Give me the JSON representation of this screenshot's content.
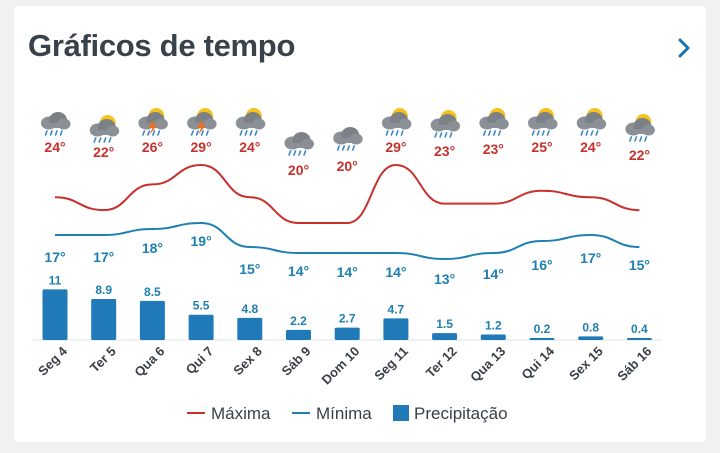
{
  "header": {
    "title": "Gráficos de tempo",
    "next_icon": "chevron-right-icon"
  },
  "colors": {
    "max": "#c7302b",
    "min": "#1e7fb0",
    "precip": "#1f7ab7",
    "title": "#39414a",
    "chevron": "#1a6fb0"
  },
  "chart_data": {
    "type": "line",
    "categories": [
      "Seg 4",
      "Ter 5",
      "Qua 6",
      "Qui 7",
      "Sex 8",
      "Sáb 9",
      "Dom 10",
      "Seg 11",
      "Ter 12",
      "Qua 13",
      "Qui 14",
      "Sex 15",
      "Sáb 16"
    ],
    "icons": [
      "rain-cloud-icon",
      "rain-sun-icon",
      "storm-sun-icon",
      "storm-sun-icon",
      "rain-sun-icon",
      "rain-cloud-icon",
      "rain-cloud-icon",
      "rain-sun-icon",
      "rain-sun-icon",
      "rain-sun-icon",
      "rain-sun-icon",
      "rain-sun-icon",
      "rain-sun-icon"
    ],
    "series": [
      {
        "name": "Máxima",
        "kind": "line",
        "values": [
          24,
          22,
          26,
          29,
          24,
          20,
          20,
          29,
          23,
          23,
          25,
          24,
          22
        ],
        "labels": [
          "24°",
          "22°",
          "26°",
          "29°",
          "24°",
          "20°",
          "20°",
          "29°",
          "23°",
          "23°",
          "25°",
          "24°",
          "22°"
        ]
      },
      {
        "name": "Mínima",
        "kind": "line",
        "values": [
          17,
          17,
          18,
          19,
          15,
          14,
          14,
          14,
          13,
          14,
          16,
          17,
          15
        ],
        "labels": [
          "17°",
          "17°",
          "18°",
          "19°",
          "15°",
          "14°",
          "14°",
          "14°",
          "13°",
          "14°",
          "16°",
          "17°",
          "15°"
        ]
      },
      {
        "name": "Precipitação",
        "kind": "bar",
        "values": [
          11,
          8.9,
          8.5,
          5.5,
          4.8,
          2.2,
          2.7,
          4.7,
          1.5,
          1.2,
          0.2,
          0.8,
          0.4
        ],
        "labels": [
          "11",
          "8.9",
          "8.5",
          "5.5",
          "4.8",
          "2.2",
          "2.7",
          "4.7",
          "1.5",
          "1.2",
          "0.2",
          "0.8",
          "0.4"
        ]
      }
    ],
    "legend": {
      "position": "bottom"
    },
    "grid": false
  }
}
